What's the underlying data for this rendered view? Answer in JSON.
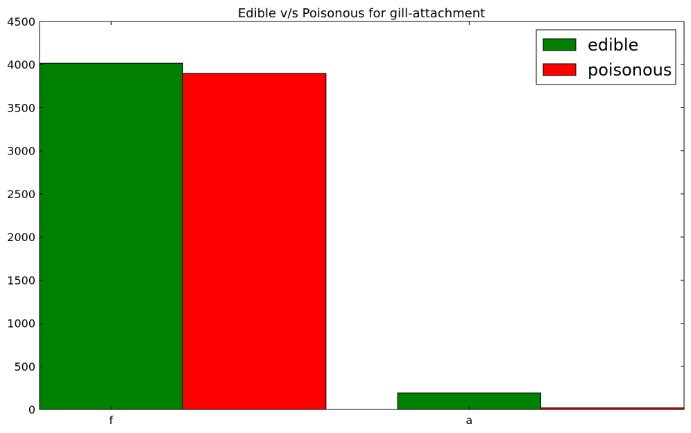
{
  "chart_data": {
    "type": "bar",
    "title": "Edible v/s Poisonous for gill-attachment",
    "xlabel": "",
    "ylabel": "",
    "categories": [
      "f",
      "a"
    ],
    "series": [
      {
        "name": "edible",
        "values": [
          4016,
          192
        ],
        "color": "#008000"
      },
      {
        "name": "poisonous",
        "values": [
          3898,
          18
        ],
        "color": "#ff0000"
      }
    ],
    "ylim": [
      0,
      4500
    ],
    "yticks": [
      0,
      500,
      1000,
      1500,
      2000,
      2500,
      3000,
      3500,
      4000,
      4500
    ],
    "grid": false,
    "legend_position": "top-right"
  }
}
